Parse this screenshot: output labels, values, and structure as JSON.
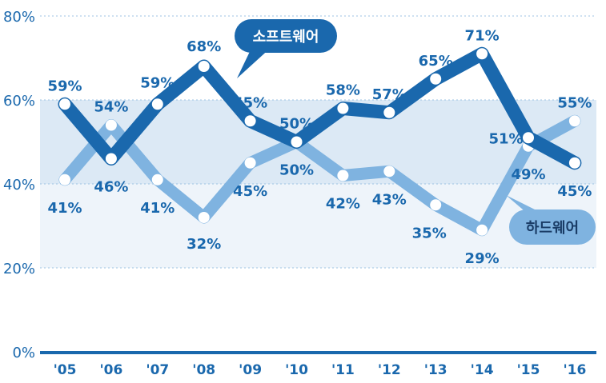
{
  "chart_data": {
    "type": "line",
    "categories": [
      "'05",
      "'06",
      "'07",
      "'08",
      "'09",
      "'10",
      "'11",
      "'12",
      "'13",
      "'14",
      "'15",
      "'16"
    ],
    "series": [
      {
        "name": "소프트웨어",
        "values": [
          59,
          46,
          59,
          68,
          55,
          50,
          58,
          57,
          65,
          71,
          51,
          45
        ],
        "labels": [
          "59%",
          "46%",
          "59%",
          "68%",
          "55%",
          "50%",
          "58%",
          "57%",
          "65%",
          "71%",
          "51%",
          "45%"
        ],
        "color": "#1a68ad"
      },
      {
        "name": "하드웨어",
        "values": [
          41,
          54,
          41,
          32,
          45,
          50,
          42,
          43,
          35,
          29,
          49,
          55
        ],
        "labels": [
          "41%",
          "54%",
          "41%",
          "32%",
          "45%",
          "50%",
          "42%",
          "43%",
          "35%",
          "29%",
          "49%",
          "55%"
        ],
        "color": "#7fb3e0"
      }
    ],
    "yticks": [
      "0%",
      "20%",
      "40%",
      "60%",
      "80%"
    ],
    "ylim": [
      0,
      80
    ],
    "grid": true,
    "bands": [
      [
        20,
        40
      ],
      [
        40,
        60
      ]
    ]
  },
  "colors": {
    "software": "#1a68ad",
    "hardware": "#7fb3e0",
    "band_light": "#eef4fa",
    "band_mid": "#dce9f5",
    "grid": "#9ec3e3",
    "axis": "#1a68ad"
  }
}
